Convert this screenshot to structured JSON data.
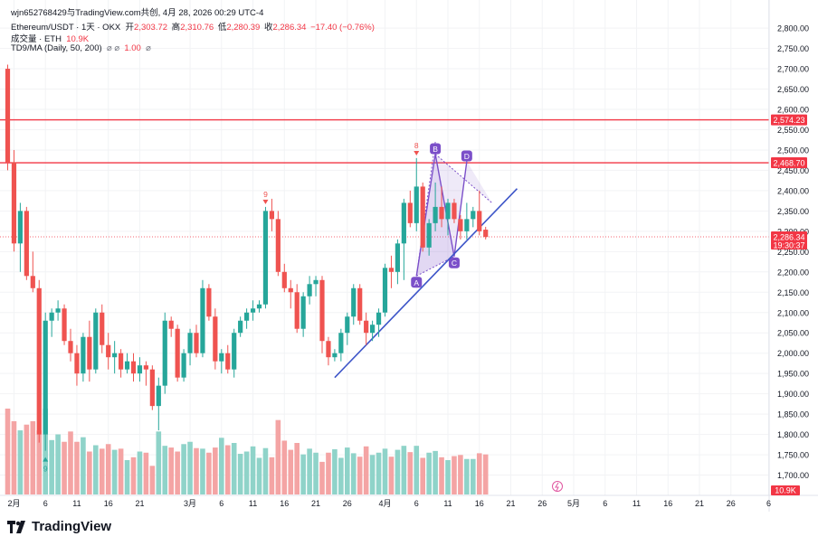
{
  "header": {
    "line1": "wjn652768429与TradingView.com共创,  4月 28, 2026 00:29 UTC-4",
    "symbol": "Ethereum/USDT · 1天 · OKX",
    "open_label": "开",
    "open": "2,303.72",
    "high_label": "高",
    "high": "2,310.76",
    "low_label": "低",
    "low": "2,280.39",
    "close_label": "收",
    "close": "2,286.34",
    "change": "−17.40 (−0.76%)",
    "volume_label": "成交量 · ETH",
    "volume_value": "10.9K",
    "indicator_label": "TD9/MA (Daily, 50, 200)",
    "indicator_value": "1.00"
  },
  "brand": {
    "name": "TradingView"
  },
  "colors": {
    "up": "#26a69a",
    "down": "#ef5350",
    "up_vol": "#8fd3c9",
    "down_vol": "#f4a4a4",
    "level": "#f23645",
    "trend": "#3d55c8",
    "pattern": "#7b4fc9"
  },
  "chart_data": {
    "type": "candlestick",
    "symbol": "Ethereum/USDT",
    "interval": "1天",
    "exchange": "OKX",
    "y_range": [
      1650,
      2850
    ],
    "y_ticks": [
      "2,800.00",
      "2,750.00",
      "2,700.00",
      "2,650.00",
      "2,600.00",
      "2,550.00",
      "2,500.00",
      "2,450.00",
      "2,400.00",
      "2,350.00",
      "2,300.00",
      "2,250.00",
      "2,200.00",
      "2,150.00",
      "2,100.00",
      "2,050.00",
      "2,000.00",
      "1,950.00",
      "1,900.00",
      "1,850.00",
      "1,800.00",
      "1,750.00",
      "1,700.00"
    ],
    "y_tick_values": [
      2800,
      2750,
      2700,
      2650,
      2600,
      2550,
      2500,
      2450,
      2400,
      2350,
      2300,
      2250,
      2200,
      2150,
      2100,
      2050,
      2000,
      1950,
      1900,
      1850,
      1800,
      1750,
      1700
    ],
    "x_ticks": [
      {
        "label": "2月",
        "date": "2026-02-01"
      },
      {
        "label": "6",
        "date": "2026-02-06"
      },
      {
        "label": "11",
        "date": "2026-02-11"
      },
      {
        "label": "16",
        "date": "2026-02-16"
      },
      {
        "label": "21",
        "date": "2026-02-21"
      },
      {
        "label": "3月",
        "date": "2026-03-01"
      },
      {
        "label": "6",
        "date": "2026-03-06"
      },
      {
        "label": "11",
        "date": "2026-03-11"
      },
      {
        "label": "16",
        "date": "2026-03-16"
      },
      {
        "label": "21",
        "date": "2026-03-21"
      },
      {
        "label": "26",
        "date": "2026-03-26"
      },
      {
        "label": "4月",
        "date": "2026-04-01"
      },
      {
        "label": "6",
        "date": "2026-04-06"
      },
      {
        "label": "11",
        "date": "2026-04-11"
      },
      {
        "label": "16",
        "date": "2026-04-16"
      },
      {
        "label": "21",
        "date": "2026-04-21"
      },
      {
        "label": "26",
        "date": "2026-04-26"
      },
      {
        "label": "5月",
        "date": "2026-05-01"
      },
      {
        "label": "6",
        "date": "2026-05-06"
      },
      {
        "label": "11",
        "date": "2026-05-11"
      },
      {
        "label": "16",
        "date": "2026-05-16"
      },
      {
        "label": "21",
        "date": "2026-05-21"
      },
      {
        "label": "26",
        "date": "2026-05-26"
      },
      {
        "label": "6",
        "date": "2026-06-01"
      }
    ],
    "x_start": "2026-01-31",
    "candles": [
      [
        2700,
        2710,
        2450,
        2470
      ],
      [
        2470,
        2500,
        2250,
        2270
      ],
      [
        2270,
        2370,
        2200,
        2350
      ],
      [
        2350,
        2360,
        2180,
        2190
      ],
      [
        2190,
        2250,
        2150,
        2160
      ],
      [
        2160,
        2180,
        1780,
        1800
      ],
      [
        1800,
        2100,
        1760,
        2080
      ],
      [
        2080,
        2110,
        2040,
        2100
      ],
      [
        2100,
        2130,
        2080,
        2110
      ],
      [
        2110,
        2120,
        2020,
        2030
      ],
      [
        2030,
        2060,
        1980,
        2000
      ],
      [
        2000,
        2020,
        1920,
        1950
      ],
      [
        1950,
        2050,
        1930,
        2040
      ],
      [
        2040,
        2080,
        1930,
        1960
      ],
      [
        1960,
        2110,
        1950,
        2100
      ],
      [
        2100,
        2120,
        2000,
        2020
      ],
      [
        2020,
        2050,
        1960,
        1990
      ],
      [
        1990,
        2030,
        1950,
        2000
      ],
      [
        2000,
        2010,
        1940,
        1960
      ],
      [
        1960,
        2000,
        1950,
        1980
      ],
      [
        1980,
        2000,
        1930,
        1950
      ],
      [
        1950,
        1990,
        1930,
        1970
      ],
      [
        1970,
        1980,
        1920,
        1960
      ],
      [
        1960,
        1970,
        1860,
        1870
      ],
      [
        1870,
        1940,
        1810,
        1920
      ],
      [
        1920,
        2100,
        1900,
        2080
      ],
      [
        2080,
        2090,
        2040,
        2060
      ],
      [
        2060,
        2070,
        1930,
        1940
      ],
      [
        1940,
        2010,
        1930,
        2000
      ],
      [
        2000,
        2060,
        1970,
        2050
      ],
      [
        2050,
        2070,
        1990,
        2000
      ],
      [
        2000,
        2180,
        1990,
        2160
      ],
      [
        2160,
        2170,
        2080,
        2090
      ],
      [
        2090,
        2110,
        1960,
        1980
      ],
      [
        1980,
        2010,
        1950,
        2000
      ],
      [
        2000,
        2020,
        1950,
        1960
      ],
      [
        1960,
        2060,
        1940,
        2050
      ],
      [
        2050,
        2090,
        2040,
        2080
      ],
      [
        2080,
        2110,
        2060,
        2100
      ],
      [
        2100,
        2130,
        2080,
        2110
      ],
      [
        2110,
        2130,
        2100,
        2120
      ],
      [
        2120,
        2360,
        2110,
        2350
      ],
      [
        2350,
        2380,
        2300,
        2330
      ],
      [
        2330,
        2350,
        2190,
        2200
      ],
      [
        2200,
        2220,
        2150,
        2160
      ],
      [
        2160,
        2180,
        2110,
        2150
      ],
      [
        2150,
        2170,
        2050,
        2060
      ],
      [
        2060,
        2150,
        2040,
        2140
      ],
      [
        2140,
        2190,
        2120,
        2170
      ],
      [
        2170,
        2190,
        2140,
        2180
      ],
      [
        2180,
        2190,
        2000,
        2030
      ],
      [
        2030,
        2040,
        1970,
        1990
      ],
      [
        1990,
        2010,
        1980,
        2000
      ],
      [
        2000,
        2060,
        1980,
        2050
      ],
      [
        2050,
        2100,
        2020,
        2090
      ],
      [
        2090,
        2170,
        2070,
        2160
      ],
      [
        2160,
        2170,
        2070,
        2080
      ],
      [
        2080,
        2100,
        2020,
        2050
      ],
      [
        2050,
        2080,
        2030,
        2070
      ],
      [
        2070,
        2110,
        2040,
        2100
      ],
      [
        2100,
        2220,
        2090,
        2210
      ],
      [
        2210,
        2240,
        2160,
        2200
      ],
      [
        2200,
        2280,
        2170,
        2270
      ],
      [
        2270,
        2380,
        2180,
        2370
      ],
      [
        2370,
        2400,
        2310,
        2320
      ],
      [
        2320,
        2480,
        2300,
        2410
      ],
      [
        2410,
        2420,
        2250,
        2260
      ],
      [
        2260,
        2330,
        2240,
        2320
      ],
      [
        2320,
        2420,
        2300,
        2360
      ],
      [
        2360,
        2410,
        2310,
        2330
      ],
      [
        2330,
        2380,
        2290,
        2370
      ],
      [
        2370,
        2380,
        2320,
        2330
      ],
      [
        2330,
        2340,
        2280,
        2300
      ],
      [
        2300,
        2370,
        2280,
        2330
      ],
      [
        2330,
        2360,
        2310,
        2350
      ],
      [
        2350,
        2400,
        2290,
        2300
      ],
      [
        2304,
        2311,
        2280,
        2286
      ]
    ],
    "volumes": [
      150,
      128,
      112,
      122,
      128,
      112,
      150,
      95,
      105,
      92,
      110,
      92,
      100,
      75,
      86,
      80,
      88,
      78,
      80,
      60,
      65,
      75,
      73,
      50,
      110,
      85,
      82,
      75,
      88,
      92,
      81,
      80,
      73,
      82,
      99,
      86,
      90,
      71,
      75,
      84,
      64,
      81,
      65,
      130,
      94,
      78,
      90,
      70,
      80,
      73,
      57,
      73,
      79,
      64,
      82,
      72,
      66,
      84,
      69,
      73,
      80,
      66,
      78,
      85,
      74,
      85,
      64,
      73,
      76,
      65,
      60,
      67,
      69,
      62,
      62,
      72,
      70
    ],
    "volume_last": "10.9K",
    "levels": [
      {
        "price": 2574.23,
        "label": "2,574.23"
      },
      {
        "price": 2468.7,
        "label": "2,468.70"
      }
    ],
    "last_price": {
      "price": 2286.34,
      "label": "2,286.34",
      "countdown": "19:30:37"
    },
    "volume_tag": "10.9K",
    "td9_marks": [
      {
        "candle": 6,
        "label": "9",
        "side": "below"
      },
      {
        "candle": 41,
        "label": "9",
        "side": "above"
      },
      {
        "candle": 65,
        "label": "8",
        "side": "above"
      }
    ],
    "trendline": {
      "from": {
        "candle": 52,
        "price": 1940
      },
      "to": {
        "candle": 81,
        "price": 2405
      }
    },
    "triangle_pattern": {
      "points": [
        {
          "label": "A",
          "candle": 65,
          "price": 2190
        },
        {
          "label": "B",
          "candle": 68,
          "price": 2490
        },
        {
          "label": "C",
          "candle": 71,
          "price": 2238
        },
        {
          "label": "D",
          "candle": 73,
          "price": 2472
        }
      ],
      "apex": {
        "candle": 77,
        "price": 2370
      }
    }
  }
}
